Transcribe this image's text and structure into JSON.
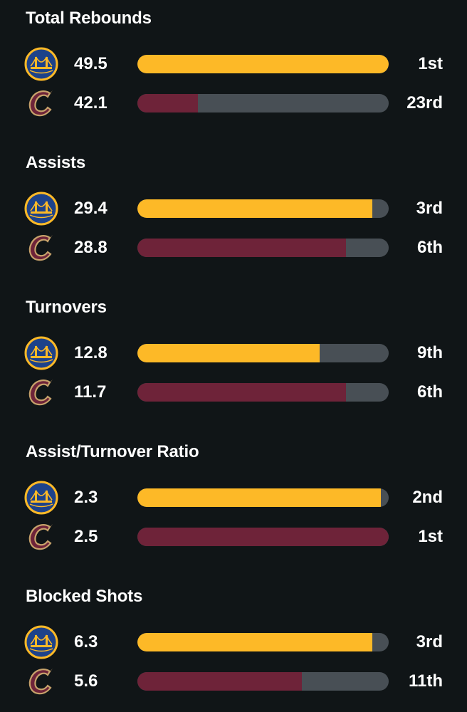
{
  "colors": {
    "background": "#101517",
    "track": "#484f55",
    "warriors": "#fdb927",
    "cavaliers": "#6e2339"
  },
  "teams": {
    "warriors": {
      "icon": "golden-state-warriors-logo-icon"
    },
    "cavaliers": {
      "icon": "cleveland-cavaliers-logo-icon"
    }
  },
  "stats": [
    {
      "title": "Total Rebounds",
      "warriors": {
        "value": "49.5",
        "rank": "1st",
        "bar_fraction": 1.0
      },
      "cavaliers": {
        "value": "42.1",
        "rank": "23rd",
        "bar_fraction": 0.24
      }
    },
    {
      "title": "Assists",
      "warriors": {
        "value": "29.4",
        "rank": "3rd",
        "bar_fraction": 0.935
      },
      "cavaliers": {
        "value": "28.8",
        "rank": "6th",
        "bar_fraction": 0.83
      }
    },
    {
      "title": "Turnovers",
      "warriors": {
        "value": "12.8",
        "rank": "9th",
        "bar_fraction": 0.725
      },
      "cavaliers": {
        "value": "11.7",
        "rank": "6th",
        "bar_fraction": 0.83
      }
    },
    {
      "title": "Assist/Turnover Ratio",
      "warriors": {
        "value": "2.3",
        "rank": "2nd",
        "bar_fraction": 0.97
      },
      "cavaliers": {
        "value": "2.5",
        "rank": "1st",
        "bar_fraction": 1.0
      }
    },
    {
      "title": "Blocked Shots",
      "warriors": {
        "value": "6.3",
        "rank": "3rd",
        "bar_fraction": 0.935
      },
      "cavaliers": {
        "value": "5.6",
        "rank": "11th",
        "bar_fraction": 0.655
      }
    }
  ]
}
